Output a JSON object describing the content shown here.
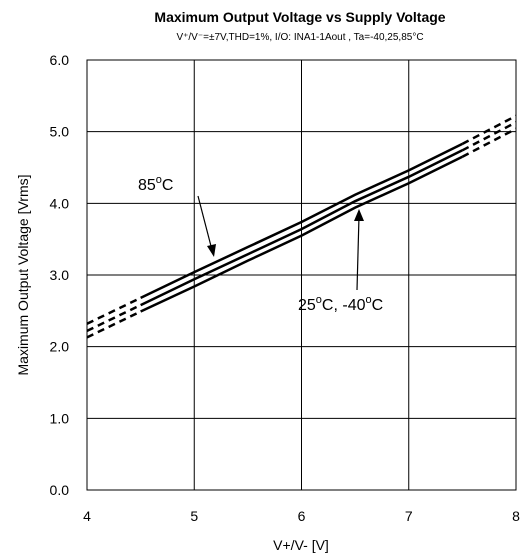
{
  "chart_data": {
    "type": "line",
    "title": "Maximum Output Voltage vs Supply Voltage",
    "subtitle": "V⁺/V⁻=±7V,THD=1%,  I/O: INA1-1Aout , Ta=-40,25,85°C",
    "xlabel": "V+/V- [V]",
    "ylabel": "Maximum Output Voltage [Vrms]",
    "xlim": [
      4,
      8
    ],
    "ylim": [
      0,
      6
    ],
    "xticks": [
      "4",
      "5",
      "6",
      "7",
      "8"
    ],
    "yticks": [
      "0.0",
      "1.0",
      "2.0",
      "3.0",
      "4.0",
      "5.0",
      "6.0"
    ],
    "grid": true,
    "solid_range": [
      4.5,
      7.5
    ],
    "series": [
      {
        "name": "85°C",
        "x": [
          4,
          4.5,
          5,
          5.5,
          6,
          6.5,
          7,
          7.5,
          8
        ],
        "y": [
          2.32,
          2.68,
          3.04,
          3.39,
          3.74,
          4.12,
          4.46,
          4.83,
          5.22
        ]
      },
      {
        "name": "25°C",
        "x": [
          4,
          4.5,
          5,
          5.5,
          6,
          6.5,
          7,
          7.5,
          8
        ],
        "y": [
          2.22,
          2.58,
          2.94,
          3.29,
          3.64,
          4.03,
          4.37,
          4.74,
          5.13
        ]
      },
      {
        "name": "-40°C",
        "x": [
          4,
          4.5,
          5,
          5.5,
          6,
          6.5,
          7,
          7.5,
          8
        ],
        "y": [
          2.13,
          2.49,
          2.84,
          3.2,
          3.55,
          3.94,
          4.28,
          4.65,
          5.04
        ]
      }
    ],
    "annotations": {
      "hot": {
        "base": "85",
        "sup": "o",
        "tail": "C"
      },
      "cold_a": {
        "base": "25",
        "sup": "o",
        "tail": "C, "
      },
      "cold_b": {
        "base": "-40",
        "sup": "o",
        "tail": "C"
      }
    },
    "line_color": "#000000",
    "grid_color": "#000000"
  }
}
